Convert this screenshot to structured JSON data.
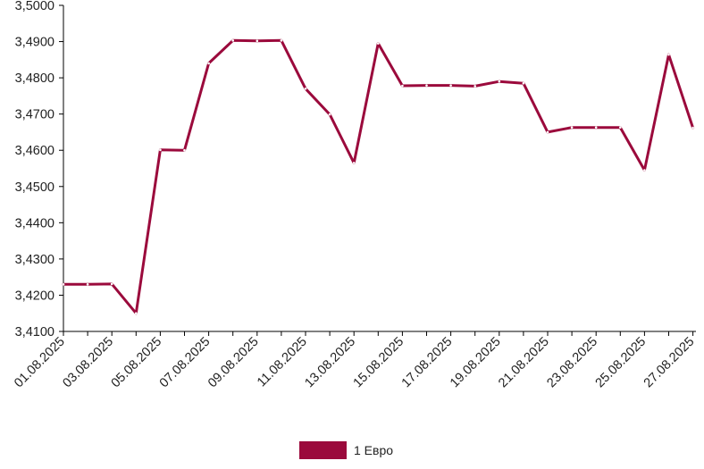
{
  "chart_data": {
    "type": "line",
    "title": "",
    "xlabel": "",
    "ylabel": "",
    "ylim": [
      3.41,
      3.5
    ],
    "y_ticks": [
      "3,4100",
      "3,4200",
      "3,4300",
      "3,4400",
      "3,4500",
      "3,4600",
      "3,4700",
      "3,4800",
      "3,4900",
      "3,5000"
    ],
    "x_ticks": [
      "01.08.2025",
      "03.08.2025",
      "05.08.2025",
      "07.08.2025",
      "09.08.2025",
      "11.08.2025",
      "13.08.2025",
      "15.08.2025",
      "17.08.2025",
      "19.08.2025",
      "21.08.2025",
      "23.08.2025",
      "25.08.2025",
      "27.08.2025"
    ],
    "x": [
      "01.08.2025",
      "02.08.2025",
      "03.08.2025",
      "04.08.2025",
      "05.08.2025",
      "06.08.2025",
      "07.08.2025",
      "08.08.2025",
      "09.08.2025",
      "10.08.2025",
      "11.08.2025",
      "12.08.2025",
      "13.08.2025",
      "14.08.2025",
      "15.08.2025",
      "16.08.2025",
      "17.08.2025",
      "18.08.2025",
      "19.08.2025",
      "20.08.2025",
      "21.08.2025",
      "22.08.2025",
      "23.08.2025",
      "24.08.2025",
      "25.08.2025",
      "26.08.2025",
      "27.08.2025"
    ],
    "series": [
      {
        "name": "1 Евро",
        "color": "#9b0a3c",
        "values": [
          3.423,
          3.423,
          3.4231,
          3.415,
          3.4601,
          3.46,
          3.484,
          3.4903,
          3.4902,
          3.4903,
          3.477,
          3.4699,
          3.4565,
          3.4895,
          3.4778,
          3.4779,
          3.4779,
          3.4777,
          3.479,
          3.4785,
          3.465,
          3.4663,
          3.4663,
          3.4663,
          3.4545,
          3.4864,
          3.4662
        ]
      }
    ],
    "grid": false,
    "legend_position": "bottom-center"
  }
}
